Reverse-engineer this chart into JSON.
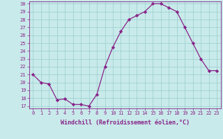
{
  "x": [
    0,
    1,
    2,
    3,
    4,
    5,
    6,
    7,
    8,
    9,
    10,
    11,
    12,
    13,
    14,
    15,
    16,
    17,
    18,
    19,
    20,
    21,
    22,
    23
  ],
  "y": [
    21.0,
    20.0,
    19.8,
    17.8,
    17.9,
    17.2,
    17.2,
    17.0,
    18.5,
    22.0,
    24.5,
    26.5,
    28.0,
    28.5,
    29.0,
    30.0,
    30.0,
    29.5,
    29.0,
    27.0,
    25.0,
    23.0,
    21.5,
    21.5
  ],
  "line_color": "#882288",
  "marker": "D",
  "marker_size": 2.2,
  "bg_color": "#c8eaea",
  "grid_color": "#99cccc",
  "xlabel": "Windchill (Refroidissement éolien,°C)",
  "xlabel_color": "#882288",
  "tick_color": "#882288",
  "ylim_min": 17,
  "ylim_max": 30,
  "yticks": [
    17,
    18,
    19,
    20,
    21,
    22,
    23,
    24,
    25,
    26,
    27,
    28,
    29,
    30
  ],
  "xticks": [
    0,
    1,
    2,
    3,
    4,
    5,
    6,
    7,
    8,
    9,
    10,
    11,
    12,
    13,
    14,
    15,
    16,
    17,
    18,
    19,
    20,
    21,
    22,
    23
  ],
  "spine_color": "#882288",
  "tick_fontsize": 5.0,
  "xlabel_fontsize": 6.0
}
